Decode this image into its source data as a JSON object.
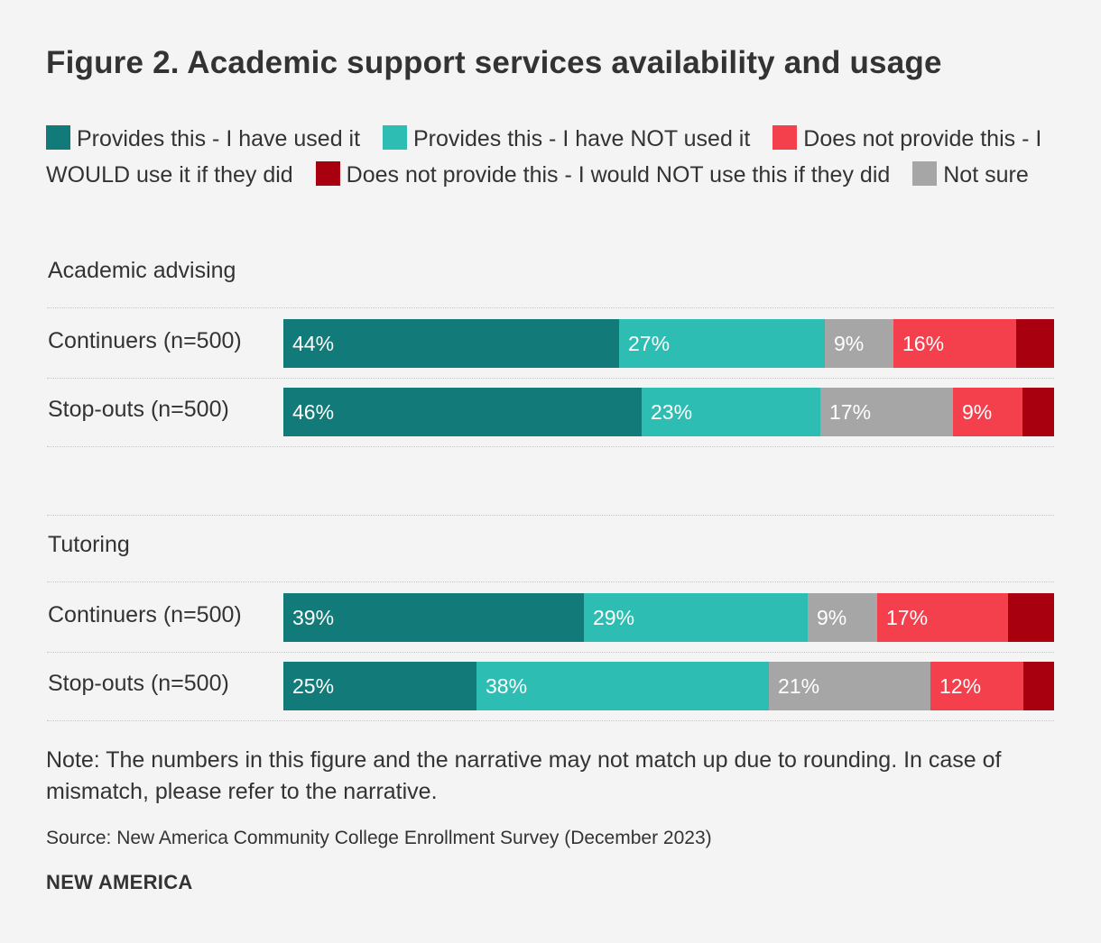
{
  "title": "Figure 2. Academic support services availability and usage",
  "legend": [
    {
      "label": "Provides this - I have used it",
      "color": "#137a7a"
    },
    {
      "label": "Provides this - I have NOT used it",
      "color": "#2ebdb3"
    },
    {
      "label": "Does not provide this - I WOULD use it if they did",
      "color": "#f4404c"
    },
    {
      "label": "Does not provide this - I would NOT use this if they did",
      "color": "#a8000e"
    },
    {
      "label": "Not sure",
      "color": "#a6a6a6"
    }
  ],
  "chart_data": {
    "type": "bar",
    "orientation": "horizontal-stacked-100",
    "title": "Figure 2. Academic support services availability and usage",
    "segment_order": [
      "Provides this - I have used it",
      "Provides this - I have NOT used it",
      "Not sure",
      "Does not provide this - I WOULD use it if they did",
      "Does not provide this - I would NOT use this if they did"
    ],
    "segment_colors": [
      "#137a7a",
      "#2ebdb3",
      "#a6a6a6",
      "#f4404c",
      "#a8000e"
    ],
    "groups": [
      {
        "name": "Academic advising",
        "rows": [
          {
            "label": "Continuers (n=500)",
            "values": [
              44,
              27,
              9,
              16,
              5
            ],
            "labels": [
              "44%",
              "27%",
              "9%",
              "16%",
              ""
            ]
          },
          {
            "label": "Stop-outs (n=500)",
            "values": [
              46,
              23,
              17,
              9,
              4
            ],
            "labels": [
              "46%",
              "23%",
              "17%",
              "9%",
              ""
            ]
          }
        ]
      },
      {
        "name": "Tutoring",
        "rows": [
          {
            "label": "Continuers (n=500)",
            "values": [
              39,
              29,
              9,
              17,
              6
            ],
            "labels": [
              "39%",
              "29%",
              "9%",
              "17%",
              ""
            ]
          },
          {
            "label": "Stop-outs (n=500)",
            "values": [
              25,
              38,
              21,
              12,
              4
            ],
            "labels": [
              "25%",
              "38%",
              "21%",
              "12%",
              ""
            ]
          }
        ]
      }
    ],
    "xlim": [
      0,
      100
    ]
  },
  "note": "Note: The numbers in this figure and the narrative may not match up due to rounding. In case of mismatch, please refer to the narrative.",
  "source": "Source: New America Community College Enrollment Survey (December 2023)",
  "brand": "NEW AMERICA"
}
